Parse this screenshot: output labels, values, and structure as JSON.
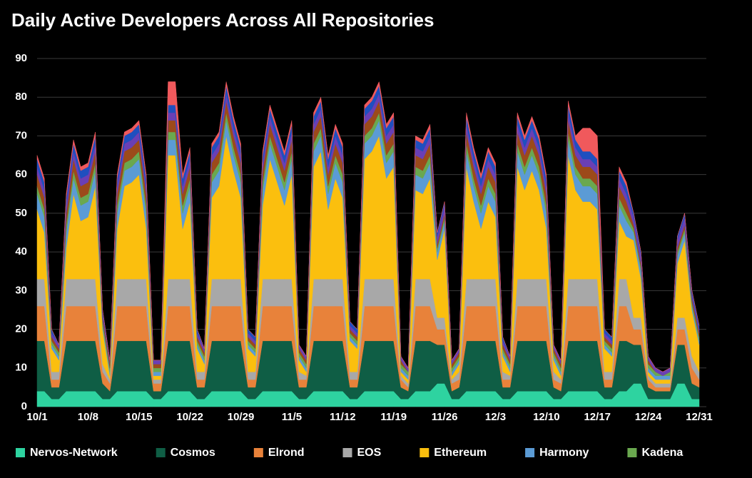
{
  "chart_data": {
    "type": "stacked_area",
    "title": "Daily Active Developers Across All Repositories",
    "categories": [
      "10/1",
      null,
      null,
      null,
      null,
      null,
      null,
      "10/8",
      null,
      null,
      null,
      null,
      null,
      null,
      "10/15",
      null,
      null,
      null,
      null,
      null,
      null,
      "10/22",
      null,
      null,
      null,
      null,
      null,
      null,
      "10/29",
      null,
      null,
      null,
      null,
      null,
      null,
      "11/5",
      null,
      null,
      null,
      null,
      null,
      null,
      "11/12",
      null,
      null,
      null,
      null,
      null,
      null,
      "11/19",
      null,
      null,
      null,
      null,
      null,
      null,
      "11/26",
      null,
      null,
      null,
      null,
      null,
      null,
      "12/3",
      null,
      null,
      null,
      null,
      null,
      null,
      "12/10",
      null,
      null,
      null,
      null,
      null,
      null,
      "12/17",
      null,
      null,
      null,
      null,
      null,
      null,
      "12/24",
      null,
      null,
      null,
      null,
      null,
      null,
      "12/31"
    ],
    "ylim": [
      0,
      90
    ],
    "yticks": [
      0,
      10,
      20,
      30,
      40,
      50,
      60,
      70,
      80,
      90
    ],
    "grid": true,
    "series": [
      {
        "name": "Nervos-Network",
        "color": "#2ed3a0",
        "values": [
          4,
          4,
          2,
          2,
          4,
          4,
          4,
          4,
          4,
          2,
          2,
          4,
          4,
          4,
          4,
          4,
          2,
          2,
          4,
          4,
          4,
          4,
          2,
          2,
          4,
          4,
          4,
          4,
          4,
          2,
          2,
          4,
          4,
          4,
          4,
          4,
          2,
          2,
          4,
          4,
          4,
          4,
          4,
          2,
          2,
          4,
          4,
          4,
          4,
          4,
          2,
          2,
          4,
          4,
          4,
          6,
          6,
          2,
          2,
          4,
          4,
          4,
          4,
          4,
          2,
          2,
          4,
          4,
          4,
          4,
          4,
          2,
          2,
          4,
          4,
          4,
          4,
          4,
          2,
          2,
          4,
          4,
          6,
          6,
          2,
          2,
          2,
          2,
          6,
          6,
          2,
          2
        ]
      },
      {
        "name": "Cosmos",
        "color": "#0f5e45",
        "values": [
          13,
          13,
          3,
          3,
          13,
          13,
          13,
          13,
          13,
          4,
          2,
          13,
          13,
          13,
          13,
          13,
          2,
          2,
          13,
          13,
          13,
          13,
          3,
          3,
          13,
          13,
          13,
          13,
          13,
          3,
          3,
          13,
          13,
          13,
          13,
          13,
          3,
          3,
          13,
          13,
          13,
          13,
          13,
          3,
          3,
          13,
          13,
          13,
          13,
          13,
          3,
          2,
          13,
          13,
          13,
          10,
          10,
          2,
          3,
          13,
          13,
          13,
          13,
          13,
          3,
          3,
          13,
          13,
          13,
          13,
          13,
          3,
          2,
          13,
          13,
          13,
          13,
          13,
          3,
          3,
          13,
          13,
          10,
          10,
          3,
          2,
          2,
          2,
          10,
          10,
          4,
          3
        ]
      },
      {
        "name": "Elrond",
        "color": "#e8823a",
        "values": [
          9,
          9,
          2,
          2,
          9,
          9,
          9,
          9,
          9,
          3,
          2,
          9,
          9,
          9,
          9,
          9,
          2,
          2,
          9,
          9,
          9,
          9,
          2,
          2,
          9,
          9,
          9,
          9,
          9,
          2,
          2,
          9,
          9,
          9,
          9,
          9,
          2,
          2,
          9,
          9,
          9,
          9,
          9,
          2,
          2,
          9,
          9,
          9,
          9,
          9,
          2,
          1,
          9,
          9,
          9,
          4,
          4,
          2,
          2,
          9,
          9,
          9,
          9,
          9,
          2,
          2,
          9,
          9,
          9,
          9,
          9,
          2,
          2,
          9,
          9,
          9,
          9,
          9,
          2,
          2,
          9,
          9,
          4,
          4,
          2,
          1,
          1,
          1,
          4,
          4,
          4,
          2
        ]
      },
      {
        "name": "EOS",
        "color": "#a8a8a8",
        "values": [
          7,
          7,
          2,
          2,
          7,
          7,
          7,
          7,
          7,
          2,
          1,
          7,
          7,
          7,
          7,
          7,
          1,
          1,
          7,
          7,
          7,
          7,
          2,
          2,
          7,
          7,
          7,
          7,
          7,
          2,
          2,
          7,
          7,
          7,
          7,
          7,
          2,
          1,
          7,
          7,
          7,
          7,
          7,
          2,
          2,
          7,
          7,
          7,
          7,
          7,
          1,
          1,
          7,
          7,
          7,
          3,
          3,
          1,
          2,
          7,
          7,
          7,
          7,
          7,
          2,
          1,
          7,
          7,
          7,
          7,
          7,
          2,
          1,
          7,
          7,
          7,
          7,
          7,
          2,
          2,
          7,
          7,
          3,
          3,
          1,
          1,
          1,
          1,
          3,
          3,
          3,
          2
        ]
      },
      {
        "name": "Ethereum",
        "color": "#fbbf0e",
        "values": [
          18,
          12,
          6,
          3,
          8,
          22,
          15,
          16,
          24,
          9,
          1,
          13,
          24,
          25,
          27,
          13,
          1,
          1,
          32,
          32,
          13,
          20,
          6,
          2,
          21,
          24,
          37,
          28,
          21,
          6,
          4,
          19,
          31,
          25,
          19,
          27,
          3,
          1,
          29,
          33,
          18,
          26,
          21,
          8,
          6,
          31,
          33,
          37,
          26,
          29,
          1,
          1,
          23,
          22,
          26,
          15,
          23,
          1,
          2,
          29,
          20,
          13,
          20,
          16,
          4,
          1,
          29,
          23,
          28,
          23,
          13,
          3,
          1,
          32,
          23,
          20,
          20,
          18,
          6,
          4,
          15,
          11,
          20,
          10,
          1,
          1,
          1,
          1,
          14,
          20,
          12,
          7
        ]
      },
      {
        "name": "Harmony",
        "color": "#5b9bd5",
        "values": [
          4,
          4,
          1,
          1,
          4,
          4,
          4,
          4,
          4,
          1,
          1,
          4,
          4,
          4,
          4,
          4,
          1,
          1,
          4,
          4,
          4,
          4,
          1,
          1,
          4,
          4,
          4,
          4,
          4,
          1,
          1,
          4,
          4,
          4,
          4,
          4,
          1,
          1,
          4,
          4,
          4,
          4,
          4,
          1,
          1,
          4,
          4,
          4,
          4,
          4,
          1,
          1,
          4,
          4,
          4,
          2,
          2,
          1,
          1,
          4,
          4,
          4,
          4,
          4,
          1,
          1,
          4,
          4,
          4,
          4,
          4,
          1,
          1,
          4,
          4,
          4,
          4,
          4,
          1,
          1,
          4,
          4,
          2,
          2,
          1,
          1,
          1,
          1,
          2,
          2,
          1,
          1
        ]
      },
      {
        "name": "Kadena",
        "color": "#6aa84f",
        "values": [
          2,
          2,
          1,
          1,
          2,
          2,
          2,
          2,
          2,
          1,
          1,
          2,
          2,
          2,
          2,
          2,
          1,
          1,
          2,
          2,
          2,
          2,
          1,
          1,
          2,
          2,
          2,
          2,
          2,
          1,
          1,
          2,
          2,
          2,
          2,
          2,
          1,
          1,
          2,
          2,
          2,
          2,
          2,
          1,
          1,
          2,
          2,
          2,
          2,
          2,
          1,
          1,
          2,
          2,
          2,
          1,
          1,
          1,
          1,
          2,
          2,
          2,
          2,
          2,
          1,
          1,
          2,
          2,
          2,
          2,
          2,
          1,
          1,
          2,
          2,
          2,
          2,
          2,
          1,
          1,
          2,
          2,
          1,
          1,
          1,
          1,
          0,
          1,
          1,
          1,
          1,
          1
        ]
      },
      {
        "color": "#9c4a1a",
        "values": [
          3,
          3,
          1,
          1,
          3,
          3,
          3,
          3,
          3,
          1,
          1,
          3,
          3,
          3,
          3,
          3,
          1,
          1,
          3,
          3,
          3,
          3,
          1,
          1,
          3,
          3,
          3,
          3,
          3,
          1,
          1,
          3,
          3,
          3,
          3,
          3,
          1,
          1,
          3,
          3,
          3,
          3,
          3,
          1,
          1,
          3,
          3,
          3,
          3,
          3,
          1,
          0,
          3,
          3,
          3,
          1,
          1,
          1,
          1,
          3,
          3,
          3,
          3,
          3,
          1,
          1,
          3,
          3,
          3,
          3,
          3,
          1,
          1,
          3,
          3,
          3,
          3,
          3,
          1,
          1,
          3,
          3,
          1,
          1,
          1,
          0,
          0,
          0,
          1,
          1,
          1,
          1
        ]
      },
      {
        "color": "#6a3fb5",
        "values": [
          2,
          2,
          1,
          1,
          2,
          2,
          2,
          2,
          2,
          1,
          1,
          2,
          2,
          2,
          2,
          2,
          1,
          1,
          2,
          2,
          2,
          2,
          1,
          1,
          2,
          2,
          2,
          2,
          2,
          1,
          1,
          2,
          2,
          2,
          2,
          2,
          1,
          1,
          2,
          2,
          2,
          2,
          2,
          1,
          1,
          2,
          2,
          2,
          2,
          2,
          1,
          1,
          2,
          2,
          2,
          2,
          2,
          1,
          1,
          2,
          2,
          2,
          2,
          2,
          1,
          1,
          2,
          2,
          2,
          2,
          2,
          1,
          1,
          2,
          2,
          2,
          2,
          2,
          1,
          1,
          2,
          2,
          2,
          2,
          1,
          1,
          1,
          1,
          2,
          2,
          1,
          1
        ]
      },
      {
        "color": "#1f4fbf",
        "values": [
          2,
          2,
          1,
          0,
          2,
          2,
          2,
          2,
          2,
          1,
          0,
          2,
          2,
          2,
          2,
          2,
          0,
          0,
          2,
          2,
          2,
          2,
          1,
          0,
          2,
          2,
          2,
          2,
          2,
          1,
          1,
          2,
          2,
          2,
          2,
          2,
          0,
          0,
          2,
          2,
          2,
          2,
          2,
          1,
          1,
          2,
          2,
          2,
          2,
          2,
          0,
          0,
          2,
          2,
          2,
          1,
          1,
          0,
          0,
          2,
          2,
          2,
          2,
          2,
          1,
          0,
          2,
          2,
          2,
          2,
          2,
          0,
          0,
          2,
          2,
          2,
          2,
          2,
          1,
          1,
          2,
          2,
          1,
          1,
          0,
          0,
          0,
          0,
          1,
          1,
          1,
          1
        ]
      },
      {
        "color": "#f0595c",
        "values": [
          1,
          1,
          0,
          0,
          1,
          1,
          1,
          1,
          1,
          0,
          0,
          1,
          1,
          1,
          1,
          1,
          0,
          0,
          6,
          6,
          1,
          1,
          0,
          0,
          1,
          1,
          1,
          1,
          1,
          0,
          0,
          1,
          1,
          1,
          1,
          1,
          0,
          0,
          1,
          1,
          1,
          1,
          1,
          0,
          0,
          1,
          1,
          1,
          1,
          1,
          0,
          0,
          1,
          1,
          1,
          0,
          0,
          0,
          0,
          1,
          1,
          1,
          1,
          1,
          0,
          0,
          1,
          1,
          1,
          1,
          1,
          0,
          0,
          1,
          1,
          6,
          6,
          6,
          0,
          0,
          1,
          1,
          0,
          0,
          0,
          0,
          0,
          0,
          0,
          0,
          0,
          0
        ]
      }
    ]
  }
}
